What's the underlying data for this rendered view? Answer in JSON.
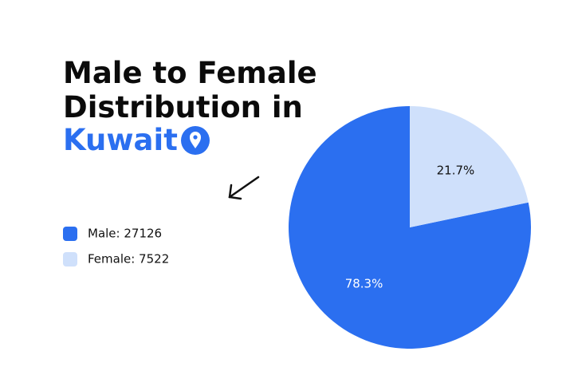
{
  "chart_data": {
    "type": "pie",
    "title_lines": [
      "Male to Female",
      "Distribution in"
    ],
    "title_place": "Kuwait",
    "categories": [
      "Male: 27126",
      "Female: 7522"
    ],
    "values": [
      78.3,
      21.7
    ],
    "value_labels": [
      "78.3%",
      "21.7%"
    ],
    "colors": [
      "#2b6ff0",
      "#cfe0fb"
    ],
    "label_colors": [
      "#ffffff",
      "#111111"
    ],
    "direction": "counterclockwise"
  }
}
